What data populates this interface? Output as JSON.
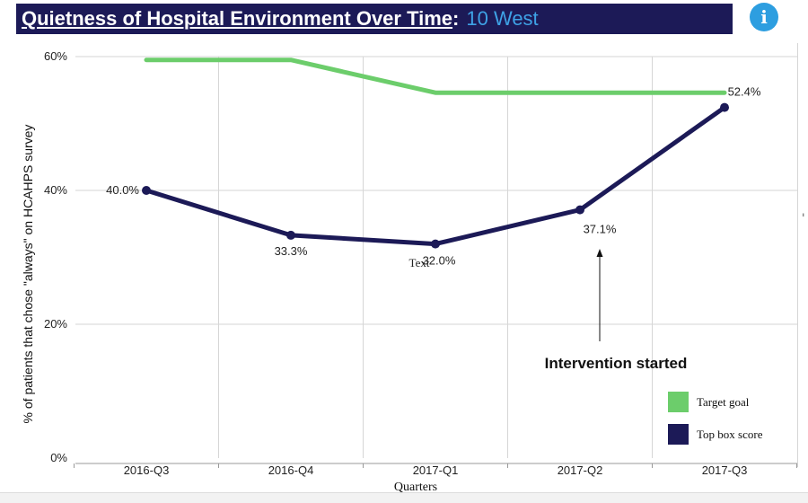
{
  "title": {
    "main": "Quietness of Hospital Environment Over Time",
    "separator": ":",
    "unit": "10 West"
  },
  "info_button": {
    "icon": "info-icon",
    "glyph": "i"
  },
  "chart_data": {
    "type": "line",
    "categories": [
      "2016-Q3",
      "2016-Q4",
      "2017-Q1",
      "2017-Q2",
      "2017-Q3"
    ],
    "series": [
      {
        "name": "Target goal",
        "values": [
          59.5,
          59.5,
          54.6,
          54.6,
          54.6
        ],
        "color": "#6ccd6b",
        "show_points": false,
        "labels": []
      },
      {
        "name": "Top box score",
        "values": [
          40.0,
          33.3,
          32.0,
          37.1,
          52.4
        ],
        "color": "#1c1a57",
        "show_points": true,
        "labels": [
          "40.0%",
          "33.3%",
          "32.0%",
          "37.1%",
          "52.4%"
        ]
      }
    ],
    "xlabel": "Quarters",
    "ylabel": "% of patients that chose \"always\" on HCAHPS survey",
    "ylim": [
      0,
      60
    ],
    "yticks": [
      0,
      20,
      40,
      60
    ],
    "ytick_labels": [
      "0%",
      "20%",
      "40%",
      "60%"
    ],
    "grid": true,
    "legend_position": "bottom-right",
    "annotations": [
      {
        "text": "Intervention started",
        "category": "2017-Q2",
        "arrow": true
      },
      {
        "text": "Text",
        "category": "2017-Q1"
      }
    ]
  }
}
